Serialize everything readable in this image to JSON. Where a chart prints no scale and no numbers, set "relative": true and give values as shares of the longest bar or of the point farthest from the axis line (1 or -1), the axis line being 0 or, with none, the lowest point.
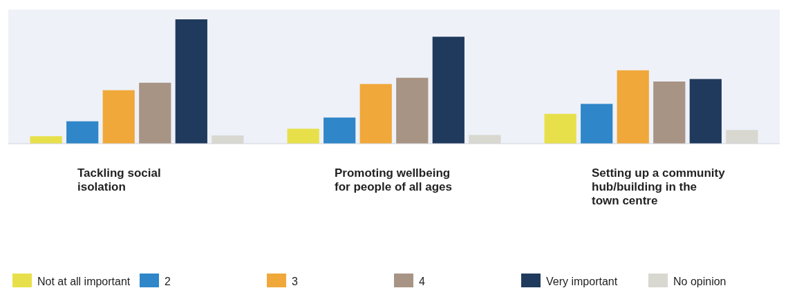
{
  "chart_data": {
    "type": "bar",
    "relative": true,
    "legend": "bottom",
    "categories": [
      "Tackling social isolation",
      "Promoting wellbeing for people of all ages",
      "Setting up a community hub/building in the town centre"
    ],
    "series": [
      {
        "name": "Not at all important",
        "color": "#e8e04a",
        "values": [
          0.06,
          0.12,
          0.24
        ]
      },
      {
        "name": "2",
        "color": "#2f86c8",
        "values": [
          0.18,
          0.21,
          0.32
        ]
      },
      {
        "name": "3",
        "color": "#f0a83a",
        "values": [
          0.43,
          0.48,
          0.59
        ]
      },
      {
        "name": "4",
        "color": "#a89484",
        "values": [
          0.49,
          0.53,
          0.5
        ]
      },
      {
        "name": "Very important",
        "color": "#1f3a5c",
        "values": [
          1,
          0.86,
          0.52
        ]
      },
      {
        "name": "No opinion",
        "color": "#d8d8d0",
        "values": [
          0.066,
          0.07,
          0.11
        ]
      }
    ]
  }
}
